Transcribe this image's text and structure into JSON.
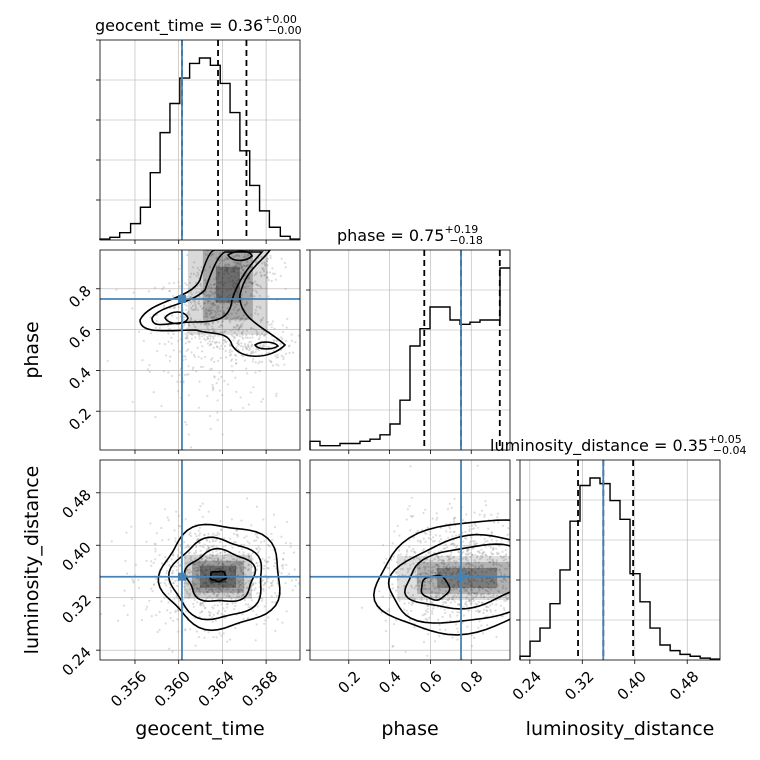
{
  "colors": {
    "truth": "#4682b4",
    "grid": "#b0b0b0",
    "hist": "#000000",
    "points": "#9a9a9a"
  },
  "labels": {
    "x_geocent": "geocent_time",
    "x_phase": "phase",
    "x_lumdist": "luminosity_distance",
    "y_phase": "phase",
    "y_lumdist": "luminosity_distance"
  },
  "titles": {
    "geocent": {
      "prefix": "geocent_time = 0.36",
      "plus": "+0.00",
      "minus": "−0.00"
    },
    "phase": {
      "prefix": "phase = 0.75",
      "plus": "+0.19",
      "minus": "−0.18"
    },
    "lumdist": {
      "prefix": "luminosity_distance = 0.35",
      "plus": "+0.05",
      "minus": "−0.04"
    }
  },
  "chart_data": {
    "type": "corner",
    "parameters": [
      "geocent_time",
      "phase",
      "luminosity_distance"
    ],
    "truths": {
      "geocent_time": 0.3603,
      "phase": 0.75,
      "luminosity_distance": 0.352
    },
    "ranges": {
      "geocent_time": [
        0.3528,
        0.3711
      ],
      "phase": [
        0.01,
        0.99
      ],
      "luminosity_distance": [
        0.225,
        0.53
      ]
    },
    "ticks": {
      "geocent_time": [
        {
          "v": 0.356,
          "label": "0.356"
        },
        {
          "v": 0.36,
          "label": "0.360"
        },
        {
          "v": 0.364,
          "label": "0.364"
        },
        {
          "v": 0.368,
          "label": "0.368"
        }
      ],
      "phase": [
        {
          "v": 0.2,
          "label": "0.2"
        },
        {
          "v": 0.4,
          "label": "0.4"
        },
        {
          "v": 0.6,
          "label": "0.6"
        },
        {
          "v": 0.8,
          "label": "0.8"
        }
      ],
      "luminosity_distance": [
        {
          "v": 0.24,
          "label": "0.24"
        },
        {
          "v": 0.32,
          "label": "0.32"
        },
        {
          "v": 0.4,
          "label": "0.40"
        },
        {
          "v": 0.48,
          "label": "0.48"
        }
      ]
    },
    "histograms": {
      "geocent_time": {
        "bin_edges": [
          0.3528,
          0.3537,
          0.3546,
          0.3556,
          0.3565,
          0.3574,
          0.3583,
          0.3592,
          0.3601,
          0.361,
          0.3619,
          0.3629,
          0.3638,
          0.3647,
          0.3656,
          0.3665,
          0.3674,
          0.3683,
          0.3693,
          0.3702,
          0.3711
        ],
        "counts": [
          0.5,
          1.5,
          4,
          9,
          18,
          37,
          59,
          75,
          89,
          97,
          100,
          96,
          86,
          70,
          49,
          30,
          16,
          7,
          2,
          0.5
        ],
        "quantiles": [
          0.3603,
          0.3636,
          0.3662
        ]
      },
      "phase": {
        "bin_edges": [
          0.01,
          0.059,
          0.108,
          0.157,
          0.206,
          0.255,
          0.304,
          0.353,
          0.402,
          0.451,
          0.5,
          0.549,
          0.598,
          0.647,
          0.696,
          0.745,
          0.794,
          0.843,
          0.892,
          0.941,
          0.99
        ],
        "counts": [
          4,
          2,
          2,
          3,
          3,
          4,
          5,
          7,
          12,
          23,
          48,
          56,
          66,
          66,
          60,
          58,
          59,
          60,
          60,
          84
        ],
        "quantiles": [
          0.57,
          0.75,
          0.94
        ]
      },
      "luminosity_distance": {
        "bin_edges": [
          0.225,
          0.2403,
          0.2555,
          0.2708,
          0.286,
          0.3013,
          0.3165,
          0.3318,
          0.347,
          0.3623,
          0.3775,
          0.3928,
          0.408,
          0.4233,
          0.4385,
          0.454,
          0.469,
          0.4845,
          0.4998,
          0.515,
          0.53
        ],
        "counts": [
          2,
          10,
          17,
          30,
          48,
          74,
          93,
          97,
          94,
          85,
          75,
          46,
          31,
          17,
          8,
          5,
          3,
          2,
          1,
          0.5
        ],
        "quantiles": [
          0.3135,
          0.352,
          0.3975
        ]
      }
    },
    "pairs": [
      {
        "x": "geocent_time",
        "y": "phase"
      },
      {
        "x": "geocent_time",
        "y": "luminosity_distance"
      },
      {
        "x": "phase",
        "y": "luminosity_distance"
      }
    ]
  }
}
